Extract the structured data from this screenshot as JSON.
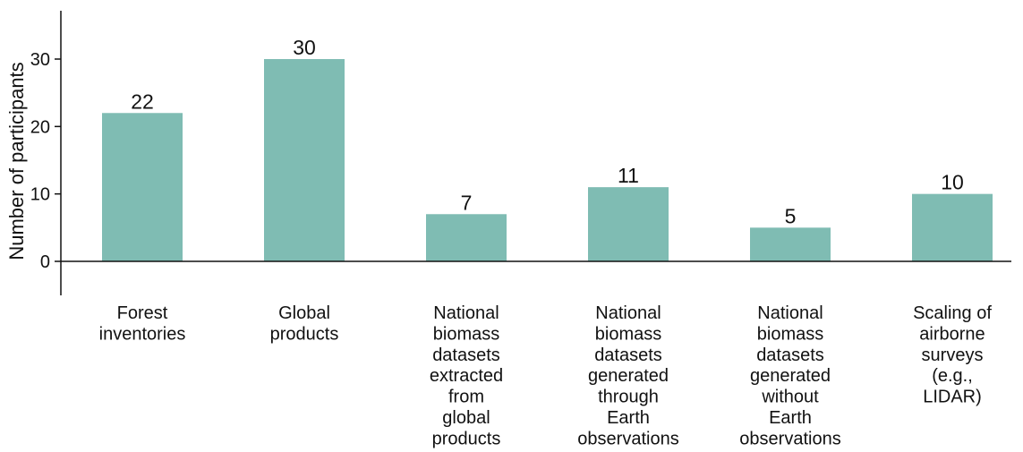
{
  "chart_data": {
    "type": "bar",
    "categories": [
      [
        "Forest",
        "inventories"
      ],
      [
        "Global",
        "products"
      ],
      [
        "National",
        "biomass",
        "datasets",
        "extracted",
        "from",
        "global",
        "products"
      ],
      [
        "National",
        "biomass",
        "datasets",
        "generated",
        "through",
        "Earth",
        "observations"
      ],
      [
        "National",
        "biomass",
        "datasets",
        "generated",
        "without",
        "Earth",
        "observations"
      ],
      [
        "Scaling of",
        "airborne",
        "surveys",
        "(e.g.,",
        "LIDAR)"
      ]
    ],
    "values": [
      22,
      30,
      7,
      11,
      5,
      10
    ],
    "data_labels": [
      "22",
      "30",
      "7",
      "11",
      "5",
      "10"
    ],
    "ylabel": "Number of participants",
    "yticks": [
      0,
      10,
      20,
      30
    ],
    "ylim": [
      -5,
      37
    ],
    "grid": false,
    "bar_color": "#7fbcb3",
    "axis_color": "#111111"
  }
}
